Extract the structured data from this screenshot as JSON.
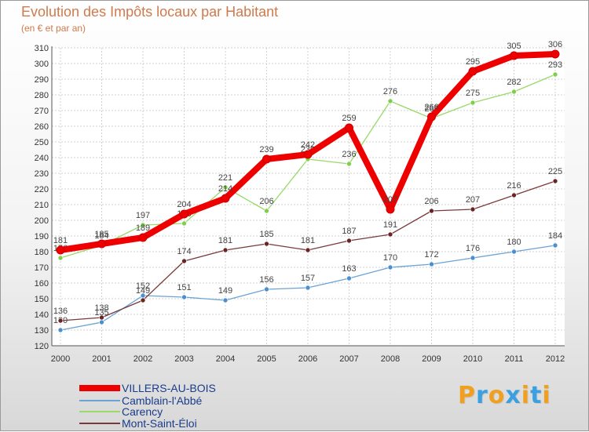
{
  "title": "Evolution des Impôts locaux par Habitant",
  "subtitle": "(en € et par an)",
  "chart_data": {
    "type": "line",
    "categories": [
      "2000",
      "2001",
      "2002",
      "2003",
      "2004",
      "2005",
      "2006",
      "2007",
      "2008",
      "2009",
      "2010",
      "2011",
      "2012"
    ],
    "ylim": [
      120,
      310
    ],
    "yticks": [
      120,
      130,
      140,
      150,
      160,
      170,
      180,
      190,
      200,
      210,
      220,
      230,
      240,
      250,
      260,
      270,
      280,
      290,
      300,
      310
    ],
    "series": [
      {
        "name": "Camblain-l'Abbé",
        "color": "#6aa3d5",
        "marker": "#4a8fd0",
        "width": 1.3,
        "values": [
          130,
          135,
          152,
          151,
          149,
          156,
          157,
          163,
          170,
          172,
          176,
          180,
          184
        ]
      },
      {
        "name": "Carency",
        "color": "#9ad96a",
        "marker": "#7ed04a",
        "width": 1.3,
        "values": [
          176,
          184,
          197,
          198,
          221,
          206,
          239,
          236,
          276,
          265,
          275,
          282,
          293
        ]
      },
      {
        "name": "Mont-Saint-Éloi",
        "color": "#7a3a3a",
        "marker": "#6b2424",
        "width": 1.3,
        "values": [
          136,
          138,
          149,
          174,
          181,
          185,
          181,
          187,
          191,
          206,
          207,
          216,
          225
        ]
      },
      {
        "name": "VILLERS-AU-BOIS",
        "color": "#ee0000",
        "marker": "#ee0000",
        "width": 8,
        "values": [
          181,
          185,
          189,
          204,
          214,
          239,
          242,
          259,
          207,
          266,
          295,
          305,
          306
        ]
      }
    ],
    "legend": [
      "VILLERS-AU-BOIS",
      "Camblain-l'Abbé",
      "Carency",
      "Mont-Saint-Éloi"
    ]
  },
  "legend_colors": [
    "#ee0000",
    "#6aa3d5",
    "#9ad96a",
    "#7a3a3a"
  ],
  "logo": {
    "letters": [
      "P",
      "r",
      "o",
      "x",
      "i",
      "t",
      "i"
    ],
    "colors": [
      "#f0a020",
      "#3aa0e0",
      "#f0a020",
      "#3aa0e0",
      "#f0a020",
      "#3aa0e0",
      "#f0a020"
    ]
  }
}
